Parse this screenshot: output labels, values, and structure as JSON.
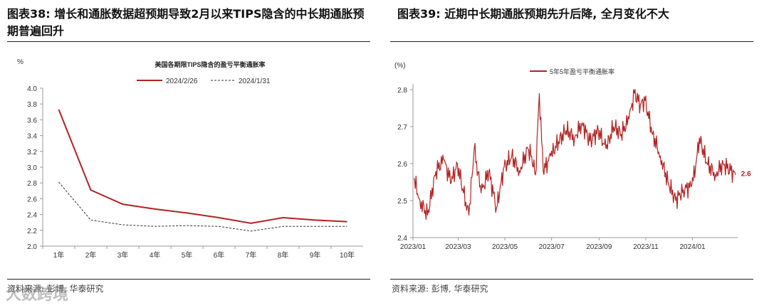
{
  "left": {
    "title": "图表38:  增长和通胀数据超预期导致2月以来TIPS隐含的中长期通胀预期普遍回升",
    "source": "资料来源: 彭博, 华泰研究",
    "watermark": "大数跨境"
  },
  "right": {
    "title": "图表39:  近期中长期通胀预期先升后降, 全月变化不大",
    "source": "资料来源: 彭博, 华泰研究"
  },
  "colors": {
    "accent": "#b22222",
    "dash": "#333333",
    "axis": "#999999"
  },
  "chart_data": [
    {
      "type": "line",
      "title": "美国各期限TIPS隐含的盈亏平衡通胀率",
      "ylabel": "%",
      "categories": [
        "1年",
        "2年",
        "3年",
        "4年",
        "5年",
        "6年",
        "7年",
        "8年",
        "9年",
        "10年"
      ],
      "ylim": [
        2.0,
        4.0
      ],
      "yticks": [
        "4.0",
        "3.8",
        "3.6",
        "3.4",
        "3.2",
        "3.0",
        "2.8",
        "2.6",
        "2.4",
        "2.2",
        "2.0"
      ],
      "legend_position": "top",
      "series": [
        {
          "name": "2024/2/26",
          "values": [
            3.73,
            2.71,
            2.53,
            2.47,
            2.42,
            2.36,
            2.29,
            2.36,
            2.33,
            2.31
          ],
          "style": "solid"
        },
        {
          "name": "2024/1/31",
          "values": [
            2.81,
            2.33,
            2.27,
            2.25,
            2.26,
            2.25,
            2.19,
            2.25,
            2.25,
            2.25
          ],
          "style": "dashed"
        }
      ]
    },
    {
      "type": "line",
      "title": "",
      "ylabel": "(%)",
      "xlim": [
        "2023-01-01",
        "2024-02-29"
      ],
      "ylim": [
        2.4,
        2.8
      ],
      "yticks": [
        "2.8",
        "2.7",
        "2.6",
        "2.5",
        "2.4"
      ],
      "xticks": [
        "2023/01",
        "2023/03",
        "2023/05",
        "2023/07",
        "2023/09",
        "2023/11",
        "2024/01"
      ],
      "legend_position": "top-left",
      "end_label": "2.6",
      "series": [
        {
          "name": "5年5年盈亏平衡通胀率",
          "x": [
            "2023-01-02",
            "2023-01-10",
            "2023-01-20",
            "2023-01-31",
            "2023-02-10",
            "2023-02-20",
            "2023-02-28",
            "2023-03-08",
            "2023-03-15",
            "2023-03-22",
            "2023-03-31",
            "2023-04-10",
            "2023-04-20",
            "2023-04-30",
            "2023-05-10",
            "2023-05-20",
            "2023-05-31",
            "2023-06-05",
            "2023-06-10",
            "2023-06-15",
            "2023-06-20",
            "2023-06-30",
            "2023-07-10",
            "2023-07-20",
            "2023-07-31",
            "2023-08-10",
            "2023-08-20",
            "2023-08-31",
            "2023-09-10",
            "2023-09-20",
            "2023-09-30",
            "2023-10-10",
            "2023-10-17",
            "2023-10-25",
            "2023-10-31",
            "2023-11-10",
            "2023-11-20",
            "2023-11-30",
            "2023-12-10",
            "2023-12-20",
            "2023-12-31",
            "2024-01-05",
            "2024-01-10",
            "2024-01-20",
            "2024-01-31",
            "2024-02-10",
            "2024-02-20",
            "2024-02-26"
          ],
          "y": [
            2.56,
            2.5,
            2.46,
            2.58,
            2.61,
            2.55,
            2.6,
            2.52,
            2.46,
            2.64,
            2.52,
            2.58,
            2.48,
            2.59,
            2.62,
            2.58,
            2.64,
            2.62,
            2.57,
            2.79,
            2.58,
            2.62,
            2.66,
            2.69,
            2.67,
            2.71,
            2.66,
            2.69,
            2.64,
            2.7,
            2.68,
            2.72,
            2.79,
            2.76,
            2.77,
            2.68,
            2.62,
            2.55,
            2.5,
            2.53,
            2.54,
            2.59,
            2.67,
            2.6,
            2.57,
            2.6,
            2.58,
            2.57
          ]
        }
      ]
    }
  ]
}
